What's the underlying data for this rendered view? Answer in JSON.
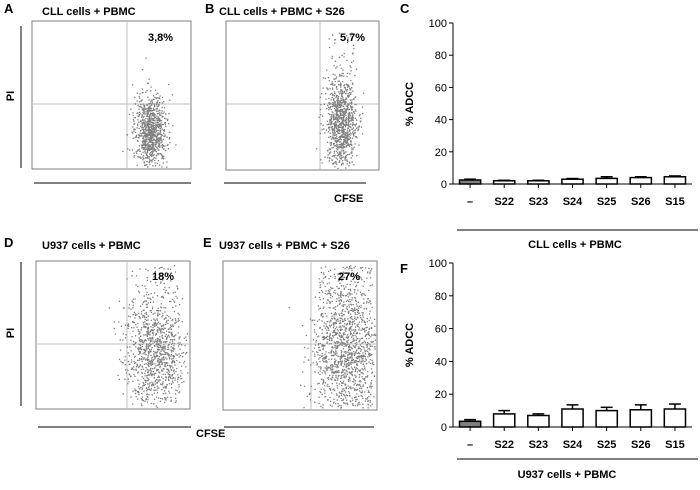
{
  "panel_labels": [
    "A",
    "B",
    "C",
    "D",
    "E",
    "F"
  ],
  "scatter_panels": [
    {
      "title": "CLL cells + PBMC",
      "percent": "3,8%",
      "ylabel": "PI",
      "xlabel": ""
    },
    {
      "title": "CLL cells + PBMC + S26",
      "percent": "5,7%",
      "ylabel": "",
      "xlabel": "CFSE"
    },
    {
      "title": "U937 cells + PBMC",
      "percent": "18%",
      "ylabel": "PI",
      "xlabel": ""
    },
    {
      "title": "U937 cells + PBMC + S26",
      "percent": "27%",
      "ylabel": "",
      "xlabel": "CFSE"
    }
  ],
  "colors": {
    "dots": "#7f7f7f",
    "control_bar": "#808080",
    "bar": "#ffffff",
    "gate": "#bfbfbf"
  },
  "chart_data": [
    {
      "type": "scatter",
      "title": "CLL cells + PBMC",
      "xlabel": "",
      "ylabel": "PI",
      "quadrant_percent": "3,8%"
    },
    {
      "type": "scatter",
      "title": "CLL cells + PBMC + S26",
      "xlabel": "CFSE",
      "ylabel": "",
      "quadrant_percent": "5,7%"
    },
    {
      "type": "bar",
      "categories": [
        "–",
        "S22",
        "S23",
        "S24",
        "S25",
        "S26",
        "S15"
      ],
      "values": [
        2.5,
        2,
        2,
        3,
        3.5,
        4,
        4.5
      ],
      "errors": [
        0.5,
        0.3,
        0.3,
        0.4,
        1,
        0.5,
        0.5
      ],
      "title": "",
      "xlabel": "CLL cells + PBMC",
      "ylabel": "% ADCC",
      "ylim": [
        0,
        100
      ],
      "yticks": [
        0,
        20,
        40,
        60,
        80,
        100
      ]
    },
    {
      "type": "scatter",
      "title": "U937 cells + PBMC",
      "xlabel": "",
      "ylabel": "PI",
      "quadrant_percent": "18%"
    },
    {
      "type": "scatter",
      "title": "U937 cells + PBMC + S26",
      "xlabel": "CFSE",
      "ylabel": "",
      "quadrant_percent": "27%"
    },
    {
      "type": "bar",
      "categories": [
        "–",
        "S22",
        "S23",
        "S24",
        "S25",
        "S26",
        "S15"
      ],
      "values": [
        3.5,
        8,
        7,
        11,
        10,
        10.5,
        11
      ],
      "errors": [
        1,
        2,
        1,
        2.5,
        2,
        3,
        3
      ],
      "title": "",
      "xlabel": "U937 cells + PBMC",
      "ylabel": "% ADCC",
      "ylim": [
        0,
        100
      ],
      "yticks": [
        0,
        20,
        40,
        60,
        80,
        100
      ]
    }
  ]
}
